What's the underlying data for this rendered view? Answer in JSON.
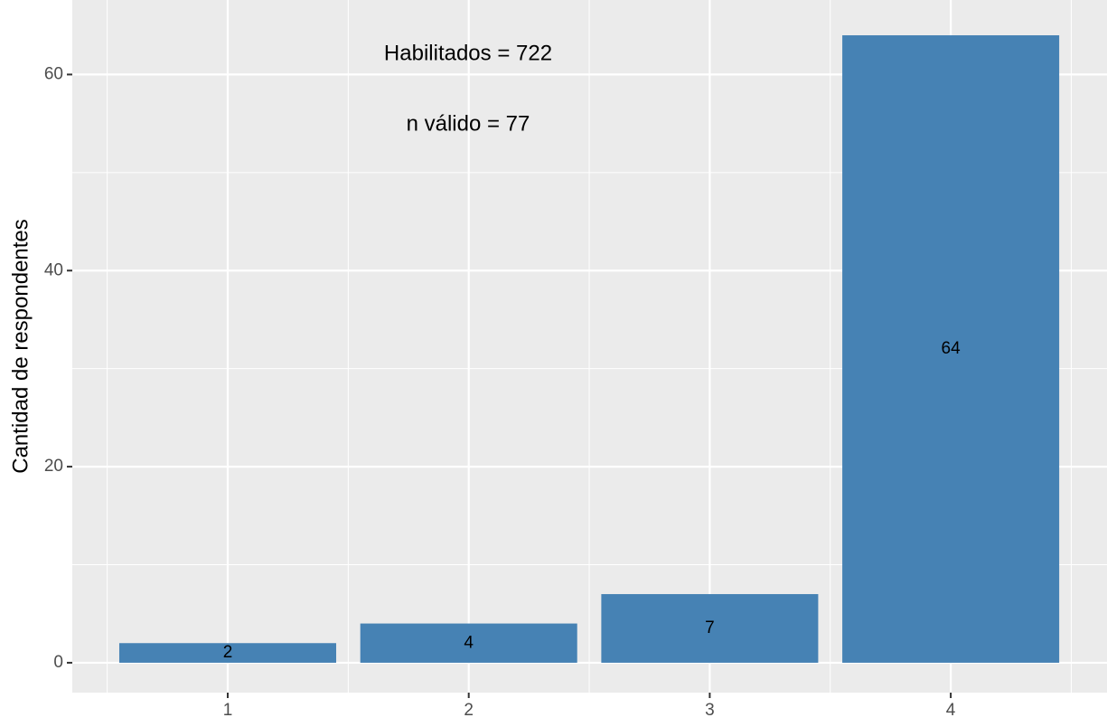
{
  "chart_data": {
    "type": "bar",
    "annotations": [
      "Habilitados =  722",
      "n válido = 77"
    ],
    "y_label": "Cantidad de respondentes",
    "categories": [
      "1",
      "2",
      "3",
      "4"
    ],
    "values": [
      2,
      4,
      7,
      64
    ],
    "color": "#4682b4",
    "ylim": [
      -3.05,
      67.6
    ],
    "yticks": [
      0,
      20,
      40,
      60
    ],
    "y_minor_ticks": [
      10,
      30,
      50
    ],
    "grid": true
  }
}
